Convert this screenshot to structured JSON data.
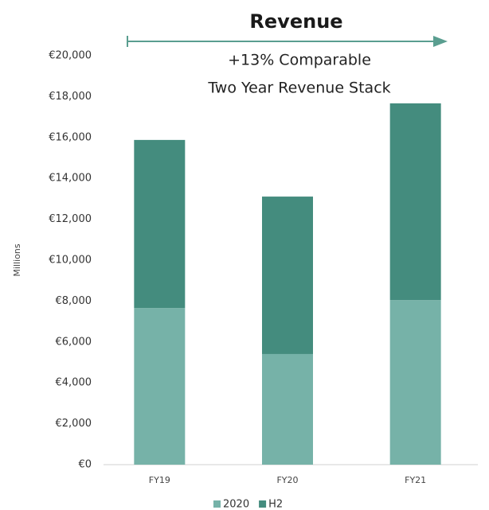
{
  "chart_data": {
    "type": "stacked_bar",
    "title": "Revenue",
    "annotations": [
      "+13% Comparable",
      "Two Year Revenue Stack"
    ],
    "y_label": "Millions",
    "categories": [
      "FY19",
      "FY20",
      "FY21"
    ],
    "series": [
      {
        "name": "2020",
        "color": "#76b2a8",
        "values": [
          7660,
          5410,
          8050
        ]
      },
      {
        "name": "H2",
        "color": "#448c7e",
        "values": [
          8220,
          7700,
          9620
        ]
      }
    ],
    "ylim": [
      0,
      20000
    ],
    "yticks": [
      {
        "value": 0,
        "label": "€0"
      },
      {
        "value": 2000,
        "label": "€2,000"
      },
      {
        "value": 4000,
        "label": "€4,000"
      },
      {
        "value": 6000,
        "label": "€6,000"
      },
      {
        "value": 8000,
        "label": "€8,000"
      },
      {
        "value": 10000,
        "label": "€10,000"
      },
      {
        "value": 12000,
        "label": "€12,000"
      },
      {
        "value": 14000,
        "label": "€14,000"
      },
      {
        "value": 16000,
        "label": "€16,000"
      },
      {
        "value": 18000,
        "label": "€18,000"
      },
      {
        "value": 20000,
        "label": "€20,000"
      }
    ],
    "grid": false,
    "legend": "bottom"
  }
}
